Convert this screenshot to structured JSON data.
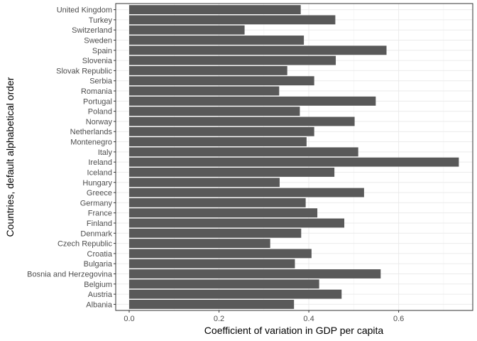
{
  "chart_data": {
    "type": "bar",
    "orientation": "horizontal",
    "xlabel": "Coefficient of variation in GDP per capita",
    "ylabel": "Countries, default alphabetical order",
    "xlim": [
      -0.03,
      0.765
    ],
    "x_ticks": [
      "0.0",
      "0.2",
      "0.4",
      "0.6"
    ],
    "grid": true,
    "bar_color": "#595959",
    "categories": [
      "Albania",
      "Austria",
      "Belgium",
      "Bosnia and Herzegovina",
      "Bulgaria",
      "Croatia",
      "Czech Republic",
      "Denmark",
      "Finland",
      "France",
      "Germany",
      "Greece",
      "Hungary",
      "Iceland",
      "Ireland",
      "Italy",
      "Montenegro",
      "Netherlands",
      "Norway",
      "Poland",
      "Portugal",
      "Romania",
      "Serbia",
      "Slovak Republic",
      "Slovenia",
      "Spain",
      "Sweden",
      "Switzerland",
      "Turkey",
      "United Kingdom"
    ],
    "values": [
      0.367,
      0.473,
      0.423,
      0.56,
      0.369,
      0.406,
      0.314,
      0.383,
      0.479,
      0.419,
      0.393,
      0.523,
      0.335,
      0.457,
      0.734,
      0.51,
      0.395,
      0.412,
      0.502,
      0.38,
      0.549,
      0.334,
      0.412,
      0.352,
      0.46,
      0.573,
      0.389,
      0.257,
      0.459,
      0.382
    ]
  }
}
